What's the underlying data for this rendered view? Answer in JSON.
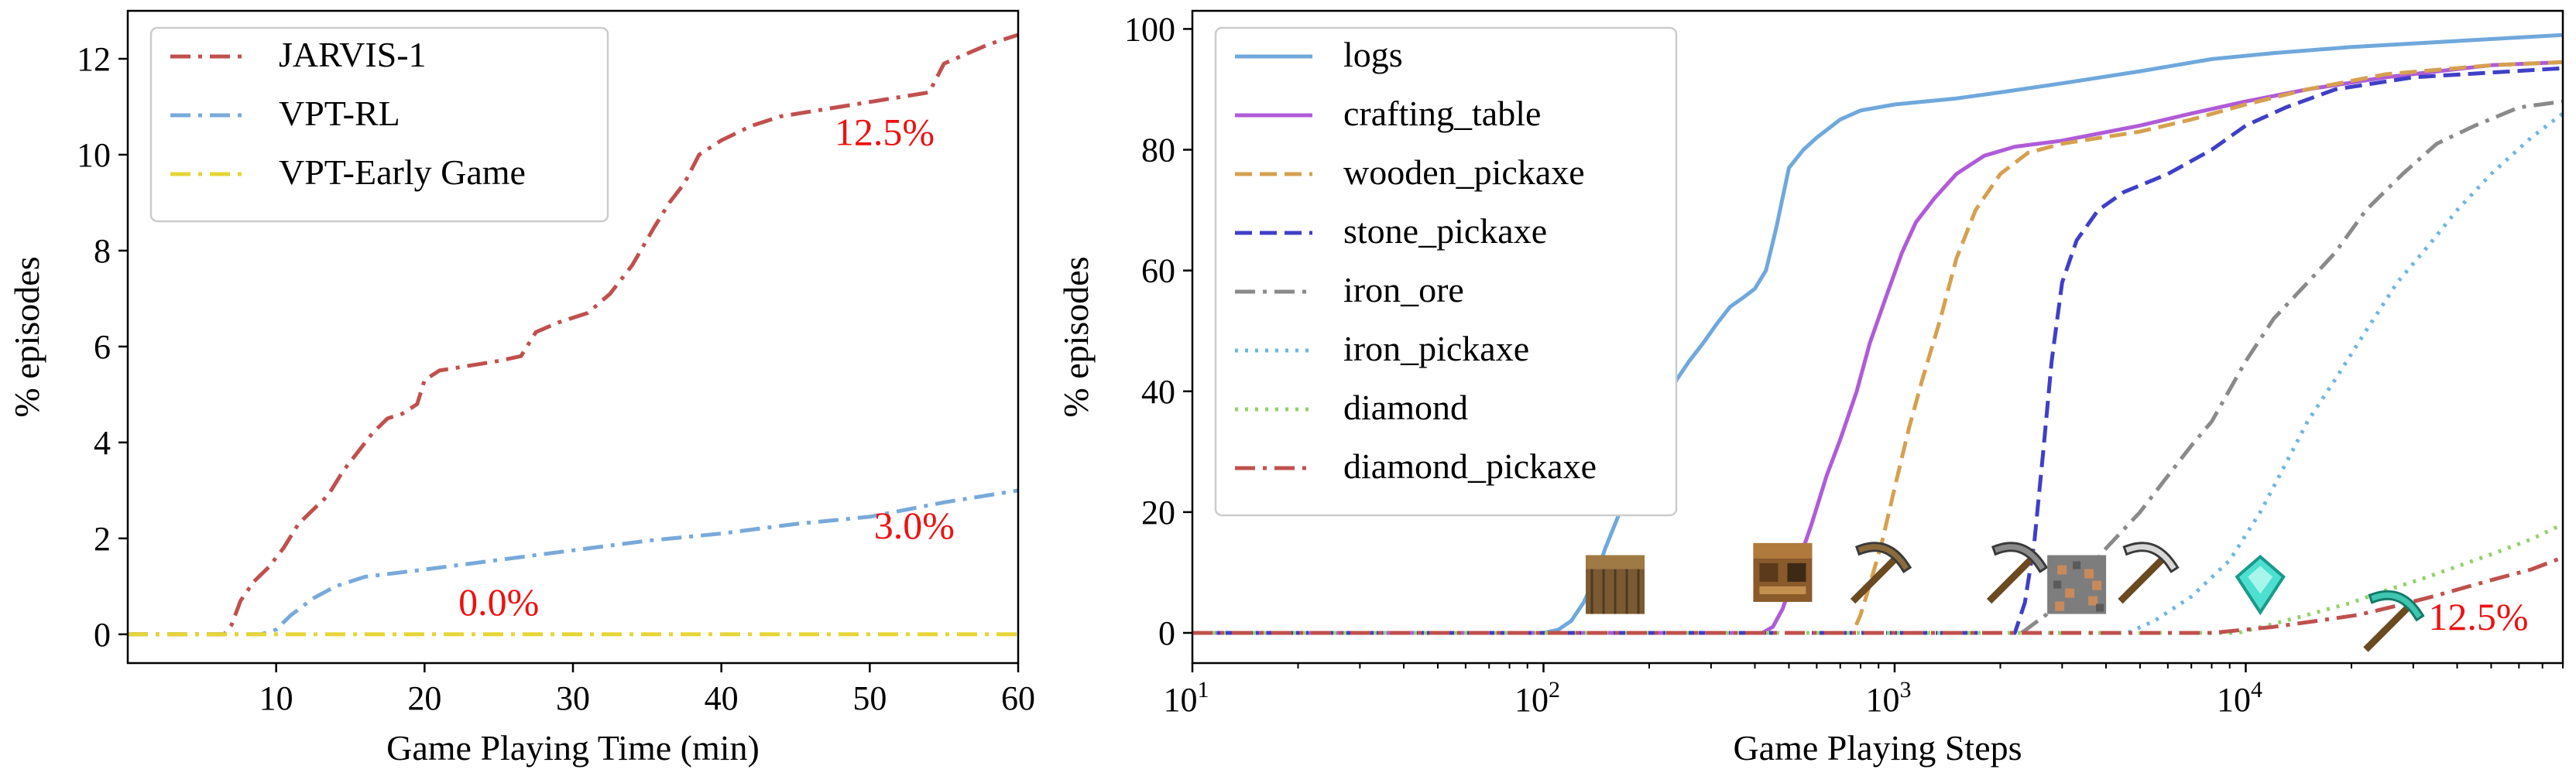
{
  "chart_data": [
    {
      "type": "line",
      "xlabel": "Game Playing Time (min)",
      "ylabel": "% episodes",
      "xlim": [
        0,
        60
      ],
      "ylim": [
        -0.6,
        13
      ],
      "xticks": [
        10,
        20,
        30,
        40,
        50,
        60
      ],
      "yticks": [
        0,
        2,
        4,
        6,
        8,
        10,
        12
      ],
      "grid": false,
      "legend_position": "top-left",
      "series": [
        {
          "name": "JARVIS-1",
          "color": "#c0504d",
          "dash": "dashdot",
          "points": [
            [
              0,
              0
            ],
            [
              6.5,
              0
            ],
            [
              7,
              0.2
            ],
            [
              7.6,
              0.7
            ],
            [
              8.5,
              1.1
            ],
            [
              9.5,
              1.4
            ],
            [
              10.5,
              1.8
            ],
            [
              11.5,
              2.3
            ],
            [
              12.5,
              2.6
            ],
            [
              13.5,
              2.9
            ],
            [
              14.5,
              3.4
            ],
            [
              15.5,
              3.8
            ],
            [
              16.5,
              4.2
            ],
            [
              17.5,
              4.5
            ],
            [
              18.5,
              4.6
            ],
            [
              19.5,
              4.8
            ],
            [
              20,
              5.3
            ],
            [
              21,
              5.5
            ],
            [
              23,
              5.6
            ],
            [
              25,
              5.7
            ],
            [
              26.5,
              5.8
            ],
            [
              27.5,
              6.3
            ],
            [
              29,
              6.5
            ],
            [
              31,
              6.7
            ],
            [
              32.5,
              7.1
            ],
            [
              34,
              7.7
            ],
            [
              35.5,
              8.5
            ],
            [
              36.5,
              9.0
            ],
            [
              37.5,
              9.4
            ],
            [
              38.5,
              10.0
            ],
            [
              40,
              10.3
            ],
            [
              42,
              10.6
            ],
            [
              44,
              10.8
            ],
            [
              46,
              10.9
            ],
            [
              48,
              11.0
            ],
            [
              50,
              11.1
            ],
            [
              52,
              11.2
            ],
            [
              54,
              11.3
            ],
            [
              55,
              11.9
            ],
            [
              56.5,
              12.1
            ],
            [
              58,
              12.3
            ],
            [
              60,
              12.5
            ]
          ]
        },
        {
          "name": "VPT-RL",
          "color": "#78a9da",
          "dash": "dashdot",
          "points": [
            [
              0,
              0
            ],
            [
              8,
              0
            ],
            [
              9,
              0
            ],
            [
              10,
              0.1
            ],
            [
              11,
              0.4
            ],
            [
              12.5,
              0.75
            ],
            [
              14,
              1.0
            ],
            [
              16,
              1.2
            ],
            [
              20,
              1.35
            ],
            [
              25,
              1.55
            ],
            [
              30,
              1.75
            ],
            [
              35,
              1.95
            ],
            [
              40,
              2.1
            ],
            [
              45,
              2.3
            ],
            [
              50,
              2.45
            ],
            [
              55,
              2.75
            ],
            [
              60,
              3.0
            ]
          ]
        },
        {
          "name": "VPT-Early Game",
          "color": "#e6d535",
          "dash": "dashdot",
          "points": [
            [
              0,
              0
            ],
            [
              60,
              0
            ]
          ]
        }
      ],
      "annotations": [
        {
          "text": "12.5%",
          "x": 51,
          "y": 10.2,
          "color": "#ee1111"
        },
        {
          "text": "3.0%",
          "x": 53,
          "y": 2.0,
          "color": "#ee1111"
        },
        {
          "text": "0.0%",
          "x": 25,
          "y": 0.4,
          "color": "#ee1111"
        }
      ]
    },
    {
      "type": "line",
      "xlabel": "Game Playing Steps",
      "ylabel": "% episodes",
      "xscale": "log",
      "xlim": [
        10,
        80000
      ],
      "ylim": [
        -5,
        103
      ],
      "xticks": [
        10,
        100,
        1000,
        10000
      ],
      "xticklabels": [
        "10^1",
        "10^2",
        "10^3",
        "10^4"
      ],
      "yticks": [
        0,
        20,
        40,
        60,
        80,
        100
      ],
      "grid": false,
      "legend_position": "top-left",
      "series": [
        {
          "name": "logs",
          "color": "#6fa8dc",
          "dash": "solid",
          "points": [
            [
              10,
              0
            ],
            [
              100,
              0
            ],
            [
              110,
              0.5
            ],
            [
              120,
              2
            ],
            [
              130,
              5
            ],
            [
              140,
              9
            ],
            [
              150,
              14
            ],
            [
              165,
              20
            ],
            [
              180,
              27
            ],
            [
              200,
              33
            ],
            [
              220,
              38
            ],
            [
              240,
              42
            ],
            [
              260,
              45
            ],
            [
              285,
              48
            ],
            [
              310,
              51
            ],
            [
              340,
              54
            ],
            [
              370,
              55.5
            ],
            [
              400,
              57
            ],
            [
              430,
              60
            ],
            [
              460,
              67
            ],
            [
              500,
              77
            ],
            [
              550,
              80
            ],
            [
              600,
              82
            ],
            [
              700,
              85
            ],
            [
              800,
              86.5
            ],
            [
              1000,
              87.5
            ],
            [
              1500,
              88.5
            ],
            [
              2000,
              89.5
            ],
            [
              3000,
              91
            ],
            [
              5000,
              93
            ],
            [
              8000,
              95
            ],
            [
              12000,
              96
            ],
            [
              20000,
              97
            ],
            [
              40000,
              98
            ],
            [
              80000,
              99
            ]
          ]
        },
        {
          "name": "crafting_table",
          "color": "#b05bd8",
          "dash": "solid",
          "points": [
            [
              10,
              0
            ],
            [
              420,
              0
            ],
            [
              450,
              1
            ],
            [
              480,
              4
            ],
            [
              520,
              10
            ],
            [
              580,
              18
            ],
            [
              640,
              26
            ],
            [
              700,
              32
            ],
            [
              780,
              40
            ],
            [
              850,
              48
            ],
            [
              950,
              56
            ],
            [
              1050,
              63
            ],
            [
              1150,
              68
            ],
            [
              1300,
              72
            ],
            [
              1500,
              76
            ],
            [
              1800,
              79
            ],
            [
              2200,
              80.5
            ],
            [
              3000,
              81.5
            ],
            [
              5000,
              84
            ],
            [
              7000,
              86
            ],
            [
              10000,
              88
            ],
            [
              15000,
              90
            ],
            [
              25000,
              92
            ],
            [
              50000,
              94
            ],
            [
              80000,
              94.5
            ]
          ]
        },
        {
          "name": "wooden_pickaxe",
          "color": "#d6a04f",
          "dash": "dashed",
          "points": [
            [
              10,
              0
            ],
            [
              760,
              0
            ],
            [
              800,
              3
            ],
            [
              850,
              8
            ],
            [
              920,
              15
            ],
            [
              1000,
              24
            ],
            [
              1100,
              34
            ],
            [
              1200,
              42
            ],
            [
              1350,
              52
            ],
            [
              1500,
              62
            ],
            [
              1700,
              70
            ],
            [
              2000,
              76
            ],
            [
              2400,
              79.5
            ],
            [
              3000,
              81
            ],
            [
              5000,
              83
            ],
            [
              7000,
              85
            ],
            [
              10000,
              87.5
            ],
            [
              15000,
              90
            ],
            [
              25000,
              92.5
            ],
            [
              50000,
              94
            ],
            [
              80000,
              94.5
            ]
          ]
        },
        {
          "name": "stone_pickaxe",
          "color": "#3f3fc8",
          "dash": "dashed",
          "points": [
            [
              10,
              0
            ],
            [
              2200,
              0
            ],
            [
              2350,
              5
            ],
            [
              2500,
              15
            ],
            [
              2650,
              30
            ],
            [
              2800,
              45
            ],
            [
              3000,
              58
            ],
            [
              3300,
              65
            ],
            [
              3800,
              70
            ],
            [
              4500,
              73
            ],
            [
              6000,
              76
            ],
            [
              8000,
              80
            ],
            [
              10000,
              84
            ],
            [
              13000,
              87
            ],
            [
              18000,
              90
            ],
            [
              30000,
              92
            ],
            [
              80000,
              93.5
            ]
          ]
        },
        {
          "name": "iron_ore",
          "color": "#8a8a8a",
          "dash": "dashdot",
          "points": [
            [
              10,
              0
            ],
            [
              2300,
              0
            ],
            [
              2700,
              3
            ],
            [
              3300,
              8
            ],
            [
              4000,
              14
            ],
            [
              5000,
              20
            ],
            [
              6000,
              26
            ],
            [
              7000,
              31
            ],
            [
              8000,
              35
            ],
            [
              10000,
              45
            ],
            [
              12000,
              52
            ],
            [
              15000,
              58
            ],
            [
              18000,
              63
            ],
            [
              22000,
              70
            ],
            [
              28000,
              76
            ],
            [
              35000,
              81
            ],
            [
              45000,
              84
            ],
            [
              60000,
              87
            ],
            [
              80000,
              88
            ]
          ]
        },
        {
          "name": "iron_pickaxe",
          "color": "#6fb6e0",
          "dash": "dotted",
          "points": [
            [
              10,
              0
            ],
            [
              4600,
              0
            ],
            [
              5500,
              2
            ],
            [
              7000,
              6
            ],
            [
              9000,
              12
            ],
            [
              11000,
              20
            ],
            [
              13000,
              28
            ],
            [
              15000,
              35
            ],
            [
              18000,
              42
            ],
            [
              22000,
              50
            ],
            [
              27000,
              58
            ],
            [
              33000,
              64
            ],
            [
              40000,
              70
            ],
            [
              50000,
              76
            ],
            [
              65000,
              82
            ],
            [
              80000,
              86
            ]
          ]
        },
        {
          "name": "diamond",
          "color": "#93d16c",
          "dash": "dotted",
          "points": [
            [
              10,
              0
            ],
            [
              9500,
              0
            ],
            [
              12000,
              1.5
            ],
            [
              15000,
              3
            ],
            [
              20000,
              5
            ],
            [
              25000,
              7
            ],
            [
              32000,
              9
            ],
            [
              40000,
              11
            ],
            [
              50000,
              13
            ],
            [
              65000,
              15.5
            ],
            [
              80000,
              18
            ]
          ]
        },
        {
          "name": "diamond_pickaxe",
          "color": "#c0504d",
          "dash": "dashdot",
          "points": [
            [
              10,
              0
            ],
            [
              8000,
              0
            ],
            [
              12000,
              1
            ],
            [
              16000,
              2
            ],
            [
              21000,
              3
            ],
            [
              27000,
              4.5
            ],
            [
              34000,
              6
            ],
            [
              42000,
              7.5
            ],
            [
              52000,
              9
            ],
            [
              65000,
              10.5
            ],
            [
              80000,
              12.5
            ]
          ]
        }
      ],
      "annotations": [
        {
          "text": "12.5%",
          "x": 46000,
          "y": 0.5,
          "color": "#ee1111"
        }
      ],
      "icons": [
        {
          "name": "log-block-icon",
          "x": 160,
          "y": 8
        },
        {
          "name": "crafting-table-icon",
          "x": 480,
          "y": 10
        },
        {
          "name": "wooden-pickaxe-icon",
          "x": 900,
          "y": 10
        },
        {
          "name": "stone-pickaxe-icon",
          "x": 2200,
          "y": 10
        },
        {
          "name": "iron-ore-block-icon",
          "x": 3300,
          "y": 8
        },
        {
          "name": "iron-pickaxe-icon",
          "x": 5200,
          "y": 10
        },
        {
          "name": "diamond-icon",
          "x": 11000,
          "y": 8
        },
        {
          "name": "diamond-pickaxe-icon",
          "x": 26000,
          "y": 2
        }
      ]
    }
  ]
}
